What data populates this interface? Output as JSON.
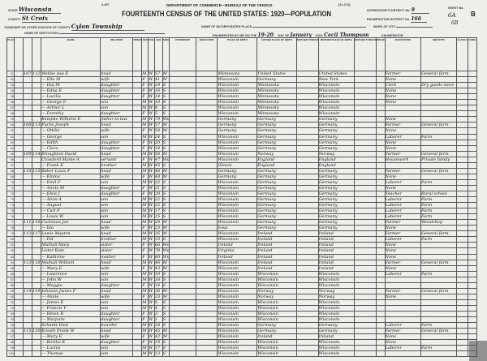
{
  "header": {
    "form_no": "4-497",
    "dept": "DEPARTMENT OF COMMERCE—BUREAU OF THE CENSUS",
    "title": "FOURTEENTH CENSUS OF THE UNITED STATES: 1920—POPULATION",
    "form_code": "[21-274]",
    "state_label": "STATE",
    "state": "Wisconsin",
    "county_label": "COUNTY",
    "county": "St Croix",
    "township_label": "TOWNSHIP OR OTHER DIVISION OF COUNTY",
    "township": "Cylon Township",
    "institution_label": "NAME OF INSTITUTION",
    "incorporated_label": "NAME OF INCORPORATED PLACE",
    "ward_label": "WARD OF CITY",
    "enumerated_label": "ENUMERATED BY ME ON THE",
    "enumerated_day": "19-20",
    "day_of_label": "DAY OF",
    "enumerated_month": "January",
    "year": "1920,",
    "enumerator": "Cecil Thompson",
    "enumerator_label": "ENUMERATOR",
    "supervisor_label": "SUPERVISOR'S DISTRICT No.",
    "supervisor_no": "9",
    "ed_label": "ENUMERATION DISTRICT No.",
    "ed_no": "166",
    "sheet_label": "SHEET No.",
    "sheet_no": "6A",
    "sheet_letter": "B",
    "sheet_alt": "6B"
  },
  "columns": [
    "PLACE OF ABODE",
    "NAME",
    "RELATION",
    "TENURE",
    "SEX",
    "COLOR OR RACE",
    "AGE",
    "SINGLE, MARRIED",
    "CITIZENSHIP",
    "EDUCATION",
    "PLACE OF BIRTH",
    "FATHER PLACE OF BIRTH",
    "MOTHER TONGUE",
    "MOTHER PLACE OF BIRTH",
    "MOTHER TONGUE",
    "SPEAK ENGLISH",
    "OCCUPATION",
    "INDUSTRY",
    "CLASS OF WORKER",
    "CODE"
  ],
  "rows": [
    [
      "51",
      "107",
      "112",
      "Webbe Asa E",
      "head",
      "M",
      "W",
      "57",
      "M",
      "Minnesota",
      "United States",
      "United States",
      "Farmer",
      "General farm"
    ],
    [
      "52",
      "",
      "",
      "— Ella M",
      "wife",
      "F",
      "W",
      "41",
      "M",
      "Wisconsin",
      "Germany",
      "New York",
      "None",
      ""
    ],
    [
      "53",
      "",
      "",
      "— Ilsa M",
      "daughter",
      "F",
      "W",
      "19",
      "S",
      "Wisconsin",
      "Minnesota",
      "Wisconsin",
      "Clerk",
      "Dry goods store"
    ],
    [
      "54",
      "",
      "",
      "— Edna E",
      "daughter",
      "F",
      "W",
      "16",
      "S",
      "Wisconsin",
      "Minnesota",
      "Wisconsin",
      "None",
      ""
    ],
    [
      "55",
      "",
      "",
      "— Lucilla",
      "daughter",
      "F",
      "W",
      "14",
      "S",
      "Wisconsin",
      "Minnesota",
      "Wisconsin",
      "None",
      ""
    ],
    [
      "56",
      "",
      "",
      "— George E",
      "son",
      "M",
      "W",
      "10",
      "S",
      "Wisconsin",
      "Minnesota",
      "Wisconsin",
      "None",
      ""
    ],
    [
      "57",
      "",
      "",
      "— Arthur L",
      "son",
      "M",
      "W",
      "8",
      "S",
      "Wisconsin",
      "Minnesota",
      "Wisconsin",
      "",
      ""
    ],
    [
      "58",
      "",
      "",
      "— Dorothy",
      "daughter",
      "F",
      "W",
      "5",
      "S",
      "Wisconsin",
      "Minnesota",
      "Wisconsin",
      "",
      ""
    ],
    [
      "59",
      "",
      "",
      "Kempke Wilhelm E",
      "father-in-law",
      "M",
      "W",
      "79",
      "Wd",
      "Germany",
      "Germany",
      "Germany",
      "None",
      ""
    ],
    [
      "60",
      "108",
      "113",
      "Fuchs Joseph",
      "head",
      "M",
      "W",
      "57",
      "M",
      "Germany",
      "Germany",
      "Germany",
      "Farmer",
      "General farm"
    ],
    [
      "61",
      "",
      "",
      "— Ottilie",
      "wife",
      "F",
      "W",
      "54",
      "M",
      "Germany",
      "Germany",
      "Germany",
      "None",
      ""
    ],
    [
      "62",
      "",
      "",
      "— George",
      "son",
      "M",
      "W",
      "24",
      "S",
      "Wisconsin",
      "Germany",
      "Germany",
      "Laborer",
      "Farm"
    ],
    [
      "63",
      "",
      "",
      "— Edith",
      "daughter",
      "F",
      "W",
      "20",
      "S",
      "Wisconsin",
      "Germany",
      "Germany",
      "None",
      ""
    ],
    [
      "64",
      "",
      "",
      "— Clara",
      "daughter",
      "F",
      "W",
      "18",
      "S",
      "Wisconsin",
      "Germany",
      "Germany",
      "None",
      ""
    ],
    [
      "65",
      "109",
      "114",
      "Broughton David",
      "head",
      "M",
      "W",
      "58",
      "M",
      "Wisconsin",
      "Norway",
      "Norway",
      "Farmer",
      "General farm"
    ],
    [
      "66",
      "",
      "",
      "Crawford Mame A",
      "servant",
      "F",
      "W",
      "47",
      "Wd",
      "Wisconsin",
      "England",
      "England",
      "Housework",
      "Private family"
    ],
    [
      "67",
      "",
      "",
      "— Frank E",
      "brother",
      "M",
      "W",
      "45",
      "S",
      "Illinois",
      "England",
      "England",
      "",
      ""
    ],
    [
      "68",
      "110",
      "115",
      "Baker Louis F",
      "head",
      "M",
      "W",
      "48",
      "M",
      "Germany",
      "Germany",
      "Germany",
      "Farmer",
      "General farm"
    ],
    [
      "69",
      "",
      "",
      "— Emma",
      "wife",
      "F",
      "W",
      "48",
      "M",
      "Germany",
      "Germany",
      "Germany",
      "None",
      ""
    ],
    [
      "70",
      "",
      "",
      "— Emil F",
      "son",
      "M",
      "W",
      "22",
      "S",
      "Wisconsin",
      "Germany",
      "Germany",
      "Laborer",
      "Farm"
    ],
    [
      "71",
      "",
      "",
      "— Annie M",
      "daughter",
      "F",
      "W",
      "21",
      "S",
      "Wisconsin",
      "Germany",
      "Germany",
      "None",
      ""
    ],
    [
      "72",
      "",
      "",
      "— Elsie J",
      "daughter",
      "F",
      "W",
      "20",
      "S",
      "Wisconsin",
      "Germany",
      "Germany",
      "Teacher",
      "Rural school"
    ],
    [
      "73",
      "",
      "",
      "— Alvin A",
      "son",
      "M",
      "W",
      "22",
      "S",
      "Wisconsin",
      "Germany",
      "Germany",
      "Laborer",
      "Farm"
    ],
    [
      "74",
      "",
      "",
      "— August",
      "son",
      "M",
      "W",
      "22",
      "S",
      "Wisconsin",
      "Germany",
      "Germany",
      "Laborer",
      "Farm"
    ],
    [
      "75",
      "",
      "",
      "— Carl F",
      "son",
      "M",
      "W",
      "17",
      "S",
      "Wisconsin",
      "Germany",
      "Germany",
      "Laborer",
      "Farm"
    ],
    [
      "76",
      "",
      "",
      "— Louis W",
      "son",
      "M",
      "W",
      "15",
      "S",
      "Wisconsin",
      "Germany",
      "Germany",
      "Laborer",
      "Farm"
    ],
    [
      "77",
      "111",
      "116",
      "Cushman Joe",
      "head",
      "M",
      "W",
      "29",
      "M",
      "Wisconsin",
      "Germany",
      "Germany",
      "Farmer",
      "Woodshop"
    ],
    [
      "78",
      "",
      "",
      "— Ida",
      "wife",
      "F",
      "W",
      "23",
      "M",
      "Iowa",
      "Germany",
      "Germany",
      "None",
      ""
    ],
    [
      "79",
      "112",
      "117",
      "Lewis Mayton",
      "head",
      "M",
      "W",
      "35",
      "M",
      "Wisconsin",
      "Ireland",
      "Ireland",
      "Farmer",
      "General farm"
    ],
    [
      "80",
      "",
      "",
      "— Pat",
      "brother",
      "M",
      "W",
      "33",
      "S",
      "Wisconsin",
      "Ireland",
      "Ireland",
      "Laborer",
      "Farm"
    ],
    [
      "81",
      "",
      "",
      "Mulhall Mary",
      "sister",
      "F",
      "W",
      "66",
      "Wd",
      "Ireland",
      "Ireland",
      "Ireland",
      "None",
      ""
    ],
    [
      "82",
      "",
      "",
      "Lister Kate",
      "sister",
      "F",
      "W",
      "70",
      "Wd",
      "Virginia",
      "Ireland",
      "Ireland",
      "None",
      ""
    ],
    [
      "83",
      "",
      "",
      "— Kathrine",
      "mother",
      "F",
      "W",
      "80",
      "Wd",
      "Ireland",
      "Ireland",
      "Ireland",
      "None",
      ""
    ],
    [
      "84",
      "113",
      "118",
      "Mulhall William",
      "head",
      "M",
      "W",
      "46",
      "M",
      "Wisconsin",
      "Ireland",
      "Ireland",
      "Farmer",
      "General farm"
    ],
    [
      "85",
      "",
      "",
      "— Mary E",
      "wife",
      "F",
      "W",
      "43",
      "M",
      "Wisconsin",
      "Ireland",
      "Ireland",
      "None",
      ""
    ],
    [
      "86",
      "",
      "",
      "— Lawrence",
      "son",
      "M",
      "W",
      "18",
      "S",
      "Wisconsin",
      "Wisconsin",
      "Wisconsin",
      "Laborer",
      "Farm"
    ],
    [
      "87",
      "",
      "",
      "— John W",
      "son",
      "M",
      "W",
      "16",
      "S",
      "Wisconsin",
      "Wisconsin",
      "Wisconsin",
      "",
      ""
    ],
    [
      "88",
      "",
      "",
      "— Maggie",
      "daughter",
      "F",
      "W",
      "14",
      "S",
      "Wisconsin",
      "Wisconsin",
      "Wisconsin",
      "",
      ""
    ],
    [
      "89",
      "114",
      "119",
      "Johnson James F",
      "head",
      "M",
      "W",
      "36",
      "M",
      "Wisconsin",
      "Norway",
      "Norway",
      "Farmer",
      "General farm"
    ],
    [
      "90",
      "",
      "",
      "— Annie",
      "wife",
      "F",
      "W",
      "33",
      "M",
      "Wisconsin",
      "Norway",
      "Norway",
      "None",
      ""
    ],
    [
      "91",
      "",
      "",
      "— James E",
      "son",
      "M",
      "W",
      "5",
      "S",
      "Wisconsin",
      "Wisconsin",
      "Wisconsin",
      "",
      ""
    ],
    [
      "92",
      "",
      "",
      "— Francis V",
      "son",
      "M",
      "W",
      "4",
      "S",
      "Wisconsin",
      "Wisconsin",
      "Wisconsin",
      "",
      ""
    ],
    [
      "93",
      "",
      "",
      "— Helen R",
      "daughter",
      "F",
      "W",
      "3",
      "S",
      "Wisconsin",
      "Wisconsin",
      "Wisconsin",
      "",
      ""
    ],
    [
      "94",
      "",
      "",
      "— Marjorie",
      "daughter",
      "F",
      "W",
      "1",
      "S",
      "Wisconsin",
      "Wisconsin",
      "Wisconsin",
      "",
      ""
    ],
    [
      "95",
      "",
      "",
      "Schmitt Emil",
      "boarder",
      "M",
      "W",
      "18",
      "S",
      "Wisconsin",
      "Germany",
      "Germany",
      "Laborer",
      "Farm"
    ],
    [
      "96",
      "115",
      "120",
      "Kreath Frank W",
      "head",
      "M",
      "W",
      "45",
      "M",
      "Wisconsin",
      "Germany",
      "Germany",
      "Farmer",
      "General farm"
    ],
    [
      "97",
      "",
      "",
      "— Mary E",
      "wife",
      "F",
      "W",
      "42",
      "M",
      "Wisconsin",
      "Ireland",
      "Ireland",
      "None",
      ""
    ],
    [
      "98",
      "",
      "",
      "— Bertha K",
      "daughter",
      "F",
      "W",
      "19",
      "S",
      "Wisconsin",
      "Wisconsin",
      "Wisconsin",
      "None",
      ""
    ],
    [
      "99",
      "",
      "",
      "— Lucius",
      "son",
      "M",
      "W",
      "17",
      "S",
      "Wisconsin",
      "Wisconsin",
      "Wisconsin",
      "Laborer",
      "Farm"
    ],
    [
      "100",
      "",
      "",
      "— Thomas",
      "son",
      "M",
      "W",
      "13",
      "S",
      "Wisconsin",
      "Wisconsin",
      "Wisconsin",
      "",
      ""
    ]
  ]
}
